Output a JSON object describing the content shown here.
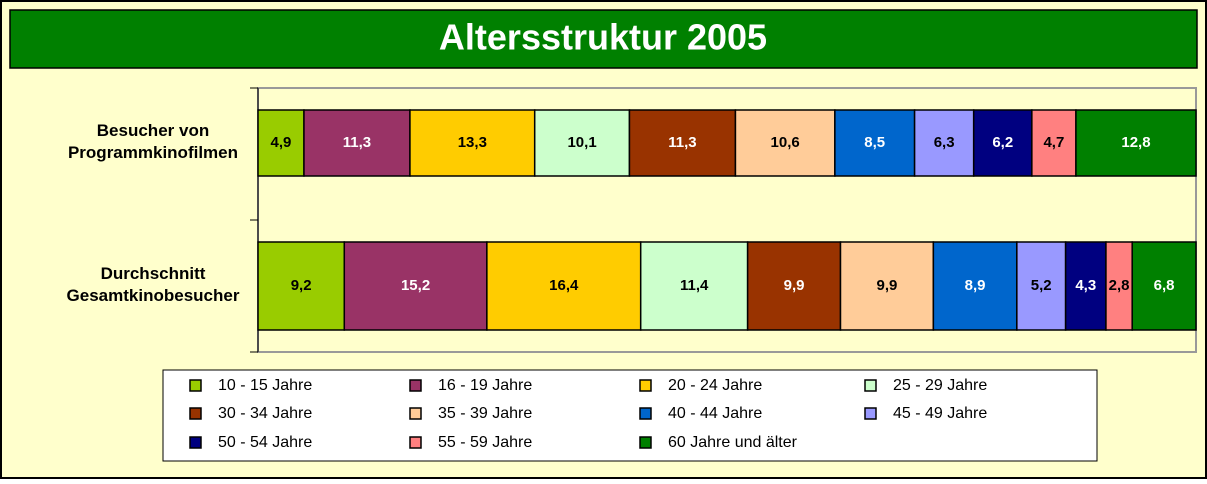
{
  "chart_data": {
    "type": "stacked_bar_horizontal",
    "title": "Altersstruktur 2005",
    "categories": [
      "Besucher von\nProgrammkinofilmen",
      "Durchschnitt\nGesamtkinobesucher"
    ],
    "xlim": [
      0,
      100
    ],
    "series": [
      {
        "name": "10 - 15 Jahre",
        "color": "#99CC00",
        "values": [
          4.9,
          9.2
        ],
        "value_labels": [
          "4,9",
          "9,2"
        ]
      },
      {
        "name": "16 - 19 Jahre",
        "color": "#993366",
        "values": [
          11.3,
          15.2
        ],
        "value_labels": [
          "11,3",
          "15,2"
        ]
      },
      {
        "name": "20 - 24 Jahre",
        "color": "#FFCC00",
        "values": [
          13.3,
          16.4
        ],
        "value_labels": [
          "13,3",
          "16,4"
        ]
      },
      {
        "name": "25 - 29 Jahre",
        "color": "#CCFFCC",
        "values": [
          10.1,
          11.4
        ],
        "value_labels": [
          "10,1",
          "11,4"
        ]
      },
      {
        "name": "30 - 34 Jahre",
        "color": "#993300",
        "values": [
          11.3,
          9.9
        ],
        "value_labels": [
          "11,3",
          "9,9"
        ]
      },
      {
        "name": "35 - 39 Jahre",
        "color": "#FFCC99",
        "values": [
          10.6,
          9.9
        ],
        "value_labels": [
          "10,6",
          "9,9"
        ]
      },
      {
        "name": "40 - 44 Jahre",
        "color": "#0066CC",
        "values": [
          8.5,
          8.9
        ],
        "value_labels": [
          "8,5",
          "8,9"
        ]
      },
      {
        "name": "45 - 49 Jahre",
        "color": "#9999FF",
        "values": [
          6.3,
          5.2
        ],
        "value_labels": [
          "6,3",
          "5,2"
        ]
      },
      {
        "name": "50 - 54 Jahre",
        "color": "#000080",
        "values": [
          6.2,
          4.3
        ],
        "value_labels": [
          "6,2",
          "4,3"
        ]
      },
      {
        "name": "55 - 59 Jahre",
        "color": "#FF8080",
        "values": [
          4.7,
          2.8
        ],
        "value_labels": [
          "4,7",
          "2,8"
        ]
      },
      {
        "name": "60 Jahre und älter",
        "color": "#008000",
        "values": [
          12.8,
          6.8
        ],
        "value_labels": [
          "12,8",
          "6,8"
        ]
      }
    ],
    "legend": "bottom"
  }
}
